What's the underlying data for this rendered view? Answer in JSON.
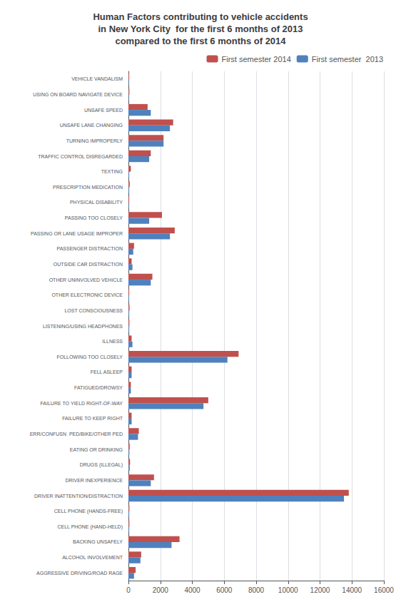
{
  "chart_data": {
    "type": "bar",
    "orientation": "horizontal",
    "title": "Human Factors contributing to vehicle accidents\nin New York City  for the first 6 months of 2013\ncompared to the first 6 months of 2014",
    "categories": [
      "VEHICLE VANDALISM",
      "USING ON BOARD NAVIGATE DEVICE",
      "UNSAFE SPEED",
      "UNSAFE LANE CHANGING",
      "TURNING IMPROPERLY",
      "TRAFFIC CONTROL DISREGARDED",
      "TEXTING",
      "PRESCRIPTION MEDICATION",
      "PHYSICAL DISABILITY",
      "PASSING TOO CLOSELY",
      "PASSING OR LANE USAGE IMPROPER",
      "PASSENGER DISTRACTION",
      "OUTSIDE CAR DISTRACTION",
      "OTHER UNINVOLVED VEHICLE",
      "OTHER ELECTRONIC DEVICE",
      "LOST CONSCIOUSNESS",
      "LISTENING/USING HEADPHONES",
      "ILLNESS",
      "FOLLOWING TOO CLOSELY",
      "FELL ASLEEP",
      "FATIGUED/DROWSY",
      "FAILURE TO YIELD RIGHT-OF-WAY",
      "FAILURE TO KEEP RIGHT",
      "ERR/CONFUSN  PED/BIKE/OTHER PED",
      "EATING OR DRINKING",
      "DRUGS (ILLEGAL)",
      "DRIVER INEXPERIENCE",
      "DRIVER INATTENTION/DISTRACTION",
      "CELL PHONE (HANDS-FREE)",
      "CELL PHONE (HAND-HELD)",
      "BACKING UNSAFELY",
      "ALCOHOL INVOLVEMENT",
      "AGGRESSIVE DRIVING/ROAD RAGE"
    ],
    "series": [
      {
        "name": "First semester 2014",
        "color": "#c0504d",
        "values": [
          50,
          60,
          1200,
          2800,
          2200,
          1400,
          150,
          80,
          50,
          2100,
          2900,
          350,
          200,
          1500,
          50,
          70,
          60,
          200,
          6900,
          200,
          150,
          5000,
          200,
          650,
          80,
          100,
          1600,
          13800,
          60,
          60,
          3200,
          800,
          450
        ]
      },
      {
        "name": "First semester  2013",
        "color": "#4f81bd",
        "values": [
          30,
          30,
          1400,
          2600,
          2200,
          1300,
          50,
          50,
          30,
          1300,
          2600,
          300,
          250,
          1400,
          40,
          50,
          50,
          250,
          6200,
          200,
          150,
          4700,
          200,
          600,
          60,
          80,
          1400,
          13500,
          50,
          50,
          2700,
          750,
          350
        ]
      }
    ],
    "xlim": [
      0,
      16000
    ],
    "xticks": [
      0,
      2000,
      4000,
      6000,
      8000,
      10000,
      12000,
      14000,
      16000
    ],
    "grid": true,
    "legend": "upper right"
  }
}
